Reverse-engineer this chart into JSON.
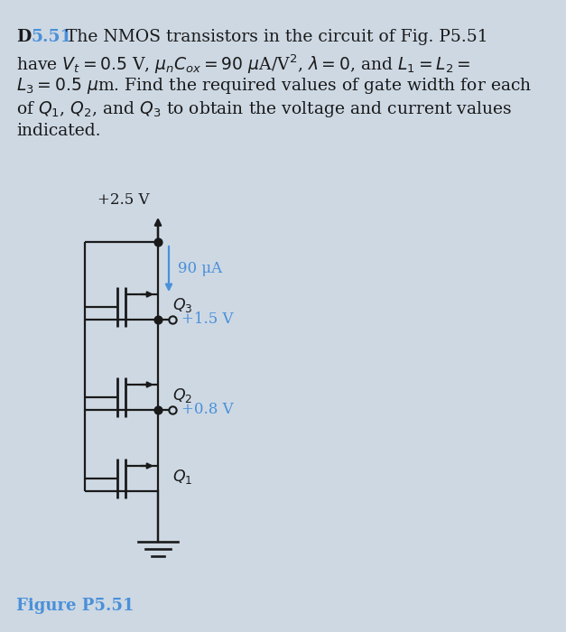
{
  "bg_color": "#cdd8e3",
  "blue_color": "#4a90d9",
  "black_color": "#1a1a1a",
  "vdd_label": "+2.5 V",
  "current_label": "90 μA",
  "v1_label": "+1.5 V",
  "v2_label": "+0.8 V",
  "q1_label": "Q_1",
  "q2_label": "Q_2",
  "q3_label": "Q_3",
  "figure_label": "Figure P5.51",
  "lw": 1.6,
  "dot_size": 40
}
